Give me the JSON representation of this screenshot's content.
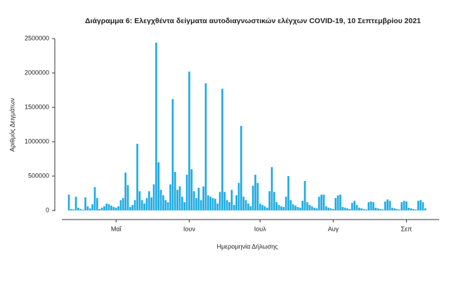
{
  "chart_data": {
    "type": "bar",
    "title": "Διάγραμμα 6: Ελεγχθέντα δείγματα αυτοδιαγνωστικών ελέγχων COVID-19, 10 Σεπτεμβρίου 2021",
    "xlabel": "Ημερομηνία Δήλωσης",
    "ylabel": "Αριθμός Δειγμάτων",
    "color": "#1aa9e3",
    "ylim": [
      0,
      2500000
    ],
    "yticks": [
      0,
      500000,
      1000000,
      1500000,
      2000000,
      2500000
    ],
    "categories": [
      null,
      null,
      null,
      null,
      null,
      null,
      null,
      null,
      null,
      null,
      null,
      null,
      null,
      null,
      null,
      null,
      null,
      null,
      null,
      null,
      "Μαΐ",
      null,
      null,
      null,
      null,
      null,
      null,
      null,
      null,
      null,
      null,
      null,
      null,
      null,
      null,
      null,
      null,
      null,
      null,
      null,
      null,
      null,
      null,
      null,
      null,
      null,
      null,
      null,
      null,
      null,
      null,
      "Ιουν",
      null,
      null,
      null,
      null,
      null,
      null,
      null,
      null,
      null,
      null,
      null,
      null,
      null,
      null,
      null,
      null,
      null,
      null,
      null,
      null,
      null,
      null,
      null,
      null,
      null,
      null,
      null,
      null,
      null,
      "Ιουλ",
      null,
      null,
      null,
      null,
      null,
      null,
      null,
      null,
      null,
      null,
      null,
      null,
      null,
      null,
      null,
      null,
      null,
      null,
      null,
      null,
      null,
      null,
      null,
      null,
      null,
      null,
      null,
      null,
      null,
      null,
      "Αυγ",
      null,
      null,
      null,
      null,
      null,
      null,
      null,
      null,
      null,
      null,
      null,
      null,
      null,
      null,
      null,
      null,
      null,
      null,
      null,
      null,
      null,
      null,
      null,
      null,
      null,
      null,
      null,
      null,
      null,
      null,
      "Σεπ",
      null,
      null,
      null,
      null,
      null,
      null,
      null,
      null
    ],
    "values": [
      230000,
      20000,
      15000,
      200000,
      40000,
      20000,
      10000,
      190000,
      60000,
      30000,
      90000,
      340000,
      180000,
      20000,
      40000,
      60000,
      100000,
      90000,
      70000,
      50000,
      40000,
      60000,
      150000,
      180000,
      550000,
      370000,
      50000,
      80000,
      150000,
      970000,
      280000,
      150000,
      100000,
      180000,
      280000,
      190000,
      380000,
      2440000,
      700000,
      300000,
      220000,
      150000,
      120000,
      380000,
      1620000,
      560000,
      300000,
      350000,
      200000,
      120000,
      520000,
      2020000,
      600000,
      280000,
      180000,
      330000,
      150000,
      350000,
      1850000,
      220000,
      200000,
      180000,
      170000,
      100000,
      270000,
      1770000,
      270000,
      150000,
      120000,
      300000,
      80000,
      220000,
      400000,
      1230000,
      200000,
      150000,
      100000,
      60000,
      360000,
      520000,
      400000,
      100000,
      80000,
      60000,
      40000,
      280000,
      630000,
      270000,
      120000,
      80000,
      60000,
      50000,
      200000,
      500000,
      150000,
      90000,
      70000,
      50000,
      40000,
      140000,
      430000,
      120000,
      80000,
      60000,
      40000,
      30000,
      200000,
      230000,
      230000,
      60000,
      40000,
      30000,
      20000,
      180000,
      220000,
      230000,
      50000,
      40000,
      30000,
      20000,
      110000,
      140000,
      80000,
      40000,
      30000,
      20000,
      15000,
      120000,
      130000,
      120000,
      40000,
      30000,
      20000,
      15000,
      130000,
      160000,
      140000,
      40000,
      30000,
      20000,
      15000,
      120000,
      140000,
      130000,
      40000,
      30000,
      20000,
      15000,
      140000,
      150000,
      120000,
      30000
    ]
  }
}
